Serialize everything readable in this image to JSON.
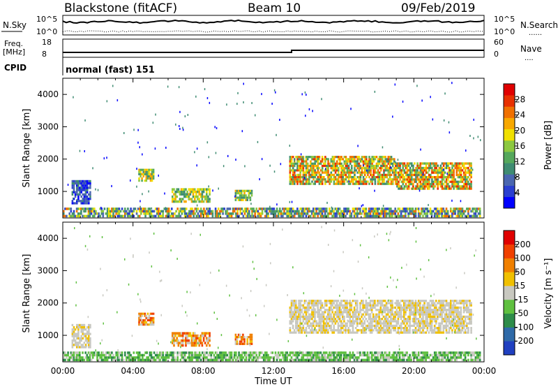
{
  "header": {
    "station": "Blackstone (fitACF)",
    "beam": "Beam 10",
    "date": "09/Feb/2019"
  },
  "status_panels": {
    "nsky_label": "N.Sky",
    "nsearch_label": "N.Search",
    "nsearch_legend": "......",
    "freq_label_top": "Freq.",
    "freq_label_unit": "[MHz]",
    "nave_label": "Nave",
    "nave_legend": "....",
    "cpid_label": "CPID",
    "cpid_text": "normal (fast) 151",
    "noise_ticks": [
      "10^5",
      "10^0"
    ],
    "freq_ticks": [
      "18",
      "8"
    ],
    "nave_ticks": [
      "60",
      "0"
    ]
  },
  "chart_data": [
    {
      "type": "heatmap",
      "name": "power",
      "ylabel": "Slant Range [km]",
      "xlabel": "Time UT",
      "y_ticks": [
        "4000",
        "3000",
        "2000",
        "1000"
      ],
      "ylim": [
        180,
        4500
      ],
      "colorbar_label": "Power [dB]",
      "colorbar_ticks": [
        "28",
        "24",
        "20",
        "16",
        "12",
        "8",
        "4"
      ],
      "colorbar_colors": [
        "#0000ff",
        "#2a3fd0",
        "#4a66b0",
        "#3f8c72",
        "#55a85c",
        "#8cc840",
        "#f0e000",
        "#f8a800",
        "#f07000",
        "#e83000",
        "#e00000"
      ],
      "regions": [
        {
          "t0": 0.5,
          "t1": 1.6,
          "r0": 600,
          "r1": 1350,
          "level": "low"
        },
        {
          "t0": 4.3,
          "t1": 5.2,
          "r0": 1300,
          "r1": 1700,
          "level": "mid"
        },
        {
          "t0": 6.2,
          "t1": 8.4,
          "r0": 650,
          "r1": 1100,
          "level": "mid"
        },
        {
          "t0": 9.8,
          "t1": 10.8,
          "r0": 700,
          "r1": 1050,
          "level": "mid"
        },
        {
          "t0": 12.9,
          "t1": 19.0,
          "r0": 1200,
          "r1": 2100,
          "level": "high"
        },
        {
          "t0": 19.0,
          "t1": 23.3,
          "r0": 1050,
          "r1": 1900,
          "level": "high"
        },
        {
          "t0": 0.0,
          "t1": 23.8,
          "r0": 200,
          "r1": 500,
          "level": "ground"
        }
      ]
    },
    {
      "type": "heatmap",
      "name": "velocity",
      "ylabel": "Slant Range [km]",
      "xlabel": "Time UT",
      "x_ticks": [
        "00:00",
        "04:00",
        "08:00",
        "12:00",
        "16:00",
        "20:00",
        "00:00"
      ],
      "xlim": [
        0,
        24
      ],
      "y_ticks": [
        "4000",
        "3000",
        "2000",
        "1000"
      ],
      "ylim": [
        180,
        4500
      ],
      "colorbar_label": "Velocity [m s⁻¹]",
      "colorbar_ticks": [
        "200",
        "100",
        "50",
        "15",
        "-15",
        "-50",
        "-100",
        "-200"
      ],
      "colorbar_colors": [
        "#2040c0",
        "#2f6aa8",
        "#2e8c4a",
        "#5fc040",
        "#c8c8c0",
        "#f0c000",
        "#f08000",
        "#f04000",
        "#e00000"
      ],
      "regions": [
        {
          "t0": 0.5,
          "t1": 1.6,
          "r0": 600,
          "r1": 1350,
          "level": "gray"
        },
        {
          "t0": 4.3,
          "t1": 5.2,
          "r0": 1300,
          "r1": 1700,
          "level": "orange"
        },
        {
          "t0": 6.2,
          "t1": 8.4,
          "r0": 650,
          "r1": 1100,
          "level": "orange"
        },
        {
          "t0": 9.8,
          "t1": 10.8,
          "r0": 700,
          "r1": 1050,
          "level": "orange"
        },
        {
          "t0": 12.9,
          "t1": 23.3,
          "r0": 1050,
          "r1": 2100,
          "level": "gray"
        },
        {
          "t0": 0.0,
          "t1": 23.8,
          "r0": 200,
          "r1": 500,
          "level": "green"
        }
      ]
    }
  ]
}
